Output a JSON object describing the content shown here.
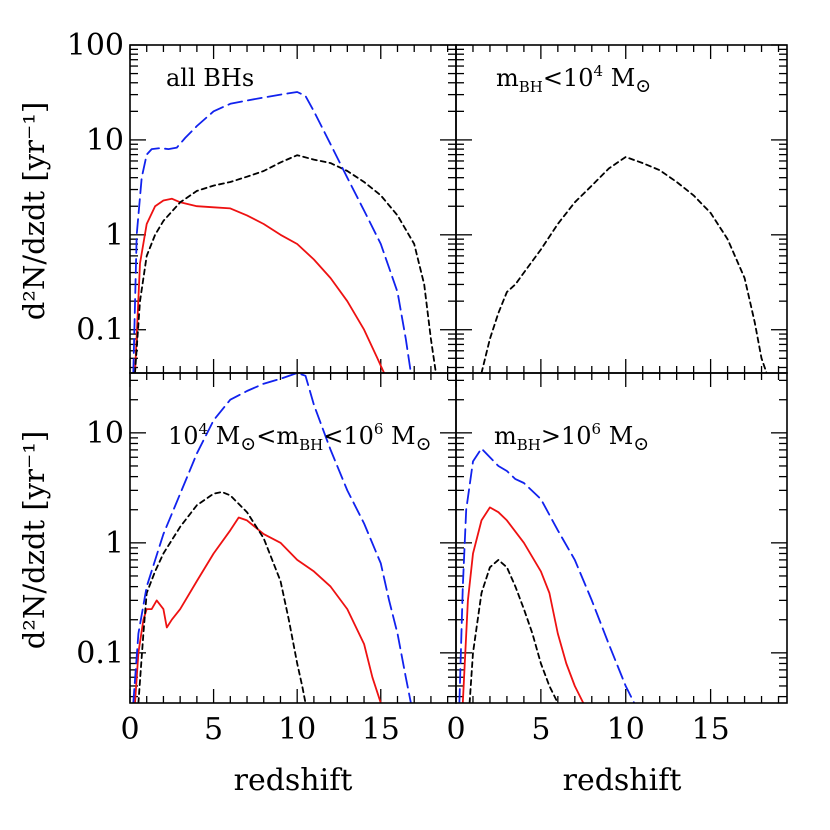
{
  "chart_data": {
    "type": "line",
    "xlabel": "redshift",
    "ylabel": "d²N/dzdt [yr⁻¹]",
    "xlim": [
      0,
      19.5
    ],
    "x_ticks": [
      "0",
      "5",
      "10",
      "15"
    ],
    "x_tick_values": [
      0,
      5,
      10,
      15
    ],
    "series_styles": [
      {
        "name": "series-red-solid",
        "color": "#ee1111",
        "dash": "solid"
      },
      {
        "name": "series-black-short-dash",
        "color": "#000000",
        "dash": "short-dash"
      },
      {
        "name": "series-blue-long-dash",
        "color": "#1122ee",
        "dash": "long-dash"
      }
    ],
    "panels": [
      {
        "id": "all",
        "label": "all BHs",
        "ylim": [
          0.035,
          100
        ],
        "y_ticks": [
          "100",
          "10",
          "1",
          "0.1"
        ],
        "y_tick_values": [
          100,
          10,
          1,
          0.1
        ],
        "series": [
          {
            "name": "red",
            "x": [
              0.3,
              0.6,
              1.0,
              1.5,
              2.0,
              2.5,
              3.0,
              4.0,
              5.0,
              6.0,
              7.0,
              8.0,
              9.0,
              10.0,
              11.0,
              12.0,
              13.0,
              14.0,
              14.8,
              15.2
            ],
            "y": [
              0.035,
              0.5,
              1.3,
              2.0,
              2.3,
              2.4,
              2.2,
              2.0,
              1.95,
              1.9,
              1.6,
              1.3,
              1.0,
              0.8,
              0.55,
              0.35,
              0.2,
              0.1,
              0.05,
              0.035
            ]
          },
          {
            "name": "black",
            "x": [
              0.3,
              0.6,
              1.0,
              1.5,
              2.0,
              3.0,
              4.0,
              5.0,
              6.0,
              7.0,
              8.0,
              9.0,
              10.0,
              11.0,
              12.0,
              13.0,
              14.0,
              15.0,
              16.0,
              17.0,
              17.6,
              18.0,
              18.3
            ],
            "y": [
              0.035,
              0.2,
              0.6,
              1.0,
              1.4,
              2.2,
              2.9,
              3.3,
              3.6,
              4.1,
              4.7,
              5.8,
              6.9,
              6.2,
              5.7,
              4.7,
              3.6,
              2.6,
              1.6,
              0.8,
              0.3,
              0.08,
              0.035
            ]
          },
          {
            "name": "blue",
            "x": [
              0.2,
              0.4,
              0.7,
              1.0,
              1.3,
              1.8,
              2.3,
              2.8,
              3.3,
              4.0,
              5.0,
              6.0,
              7.0,
              8.0,
              9.0,
              10.0,
              10.5,
              11.0,
              12.0,
              13.0,
              14.0,
              15.0,
              16.0,
              16.5,
              16.8
            ],
            "y": [
              0.035,
              1.0,
              4.0,
              7.0,
              8.0,
              8.2,
              8.0,
              8.3,
              10.5,
              14.0,
              20.0,
              24.0,
              26.0,
              28.0,
              30.0,
              32.0,
              29.0,
              20.0,
              9.0,
              4.0,
              1.8,
              0.8,
              0.25,
              0.08,
              0.035
            ]
          }
        ]
      },
      {
        "id": "low",
        "label": "m_BH<10^4 M_sun",
        "label_parts": [
          "m",
          "BH",
          "<10",
          "4",
          " M",
          "⊙"
        ],
        "ylim": [
          0.035,
          100
        ],
        "y_ticks": [],
        "y_tick_values": [
          100,
          10,
          1,
          0.1
        ],
        "series": [
          {
            "name": "black",
            "x": [
              1.5,
              2.0,
              2.5,
              3.0,
              3.5,
              4.0,
              5.0,
              6.0,
              7.0,
              8.0,
              9.0,
              10.0,
              11.0,
              12.0,
              13.0,
              14.0,
              15.0,
              16.0,
              17.0,
              17.6,
              18.0,
              18.3
            ],
            "y": [
              0.035,
              0.08,
              0.15,
              0.25,
              0.3,
              0.4,
              0.7,
              1.3,
              2.2,
              3.3,
              5.0,
              6.6,
              5.7,
              4.8,
              3.6,
              2.6,
              1.7,
              0.9,
              0.35,
              0.12,
              0.05,
              0.035
            ]
          }
        ]
      },
      {
        "id": "mid",
        "label": "10^4 M_sun<m_BH<10^6 M_sun",
        "label_parts": [
          "10",
          "4",
          " M",
          "⊙",
          "<m",
          "BH",
          "<10",
          "6",
          " M",
          "⊙"
        ],
        "ylim": [
          0.035,
          35
        ],
        "y_ticks": [
          "10",
          "1",
          "0.1"
        ],
        "y_tick_values": [
          10,
          1,
          0.1
        ],
        "series": [
          {
            "name": "red",
            "x": [
              0.3,
              0.5,
              0.8,
              1.0,
              1.3,
              1.6,
              2.0,
              2.2,
              2.5,
              3.0,
              4.0,
              5.0,
              6.0,
              6.5,
              7.0,
              8.0,
              9.0,
              10.0,
              11.0,
              12.0,
              13.0,
              14.0,
              14.5,
              15.0
            ],
            "y": [
              0.035,
              0.1,
              0.2,
              0.25,
              0.25,
              0.3,
              0.25,
              0.17,
              0.2,
              0.25,
              0.45,
              0.8,
              1.3,
              1.7,
              1.6,
              1.2,
              1.0,
              0.7,
              0.55,
              0.4,
              0.25,
              0.12,
              0.06,
              0.035
            ]
          },
          {
            "name": "black",
            "x": [
              0.5,
              0.8,
              1.0,
              1.5,
              2.0,
              3.0,
              4.0,
              5.0,
              5.5,
              6.0,
              7.0,
              8.0,
              9.0,
              9.5,
              10.0,
              10.3,
              10.5
            ],
            "y": [
              0.035,
              0.15,
              0.35,
              0.55,
              0.8,
              1.4,
              2.2,
              2.8,
              2.9,
              2.7,
              1.9,
              1.1,
              0.45,
              0.2,
              0.08,
              0.05,
              0.035
            ]
          },
          {
            "name": "blue",
            "x": [
              0.2,
              0.5,
              1.0,
              2.0,
              3.0,
              4.0,
              5.0,
              6.0,
              7.0,
              8.0,
              9.0,
              10.0,
              10.5,
              11.0,
              12.0,
              13.0,
              14.0,
              15.0,
              15.5,
              16.0,
              16.5,
              16.8
            ],
            "y": [
              0.035,
              0.15,
              0.4,
              1.2,
              2.8,
              6.5,
              13.0,
              20.0,
              24.0,
              28.0,
              31.0,
              35.0,
              33.0,
              18.0,
              7.0,
              3.0,
              1.5,
              0.65,
              0.3,
              0.15,
              0.06,
              0.035
            ]
          }
        ]
      },
      {
        "id": "high",
        "label": "m_BH>10^6 M_sun",
        "label_parts": [
          "m",
          "BH",
          ">10",
          "6",
          " M",
          "⊙"
        ],
        "ylim": [
          0.035,
          35
        ],
        "y_ticks": [],
        "y_tick_values": [
          10,
          1,
          0.1
        ],
        "series": [
          {
            "name": "red",
            "x": [
              0.4,
              0.7,
              1.0,
              1.5,
              2.0,
              2.5,
              3.0,
              4.0,
              5.0,
              5.5,
              6.0,
              6.5,
              7.0,
              7.5
            ],
            "y": [
              0.035,
              0.3,
              0.8,
              1.6,
              2.1,
              1.9,
              1.6,
              1.0,
              0.55,
              0.35,
              0.15,
              0.08,
              0.05,
              0.035
            ]
          },
          {
            "name": "black",
            "x": [
              0.8,
              1.0,
              1.5,
              2.0,
              2.5,
              3.0,
              3.5,
              4.0,
              4.5,
              5.0,
              5.5,
              6.0
            ],
            "y": [
              0.035,
              0.1,
              0.35,
              0.6,
              0.7,
              0.6,
              0.4,
              0.25,
              0.15,
              0.08,
              0.05,
              0.035
            ]
          },
          {
            "name": "blue",
            "x": [
              0.2,
              0.4,
              0.6,
              1.0,
              1.5,
              2.0,
              2.5,
              3.0,
              3.5,
              4.0,
              5.0,
              6.0,
              7.0,
              8.0,
              9.0,
              10.0,
              10.5
            ],
            "y": [
              0.035,
              0.4,
              2.0,
              5.5,
              7.2,
              6.0,
              5.0,
              4.5,
              3.8,
              3.5,
              2.5,
              1.3,
              0.7,
              0.3,
              0.12,
              0.05,
              0.035
            ]
          }
        ]
      }
    ]
  }
}
